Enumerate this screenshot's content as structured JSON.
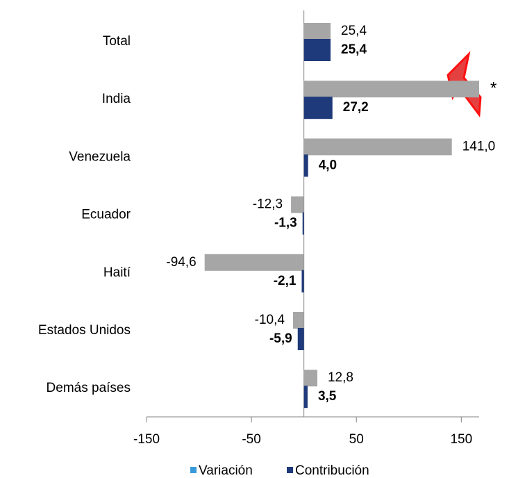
{
  "chart_data": {
    "type": "hbar",
    "categories": [
      "Total",
      "India",
      "Venezuela",
      "Ecuador",
      "Haití",
      "Estados Unidos",
      "Demás países"
    ],
    "series": [
      {
        "name": "Variación",
        "color": "#a6a6a6",
        "marker_color": "#3a9ad9",
        "values": [
          25.4,
          167,
          141.0,
          -12.3,
          -94.6,
          -10.4,
          12.8
        ],
        "value_labels": [
          "25,4",
          null,
          "141,0",
          "-12,3",
          "-94,6",
          "-10,4",
          "12,8"
        ]
      },
      {
        "name": "Contribución",
        "color": "#1f3a7a",
        "marker_color": "#1f3a7a",
        "values": [
          25.4,
          27.2,
          4.0,
          -1.3,
          -2.1,
          -5.9,
          3.5
        ],
        "value_labels": [
          "25,4",
          "27,2",
          "4,0",
          "-1,3",
          "-2,1",
          "-5,9",
          "3,5"
        ]
      }
    ],
    "annotations": [
      "*"
    ],
    "xlim": [
      -150,
      167
    ],
    "xticks": [
      -150,
      -50,
      50,
      150
    ],
    "legend": "bottom"
  }
}
